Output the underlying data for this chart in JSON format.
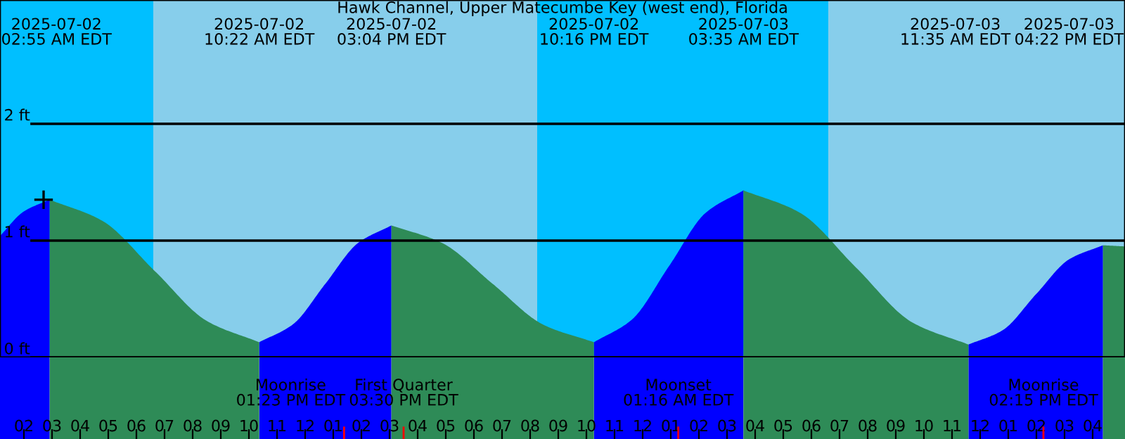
{
  "chart_data": {
    "type": "area",
    "title": "Hawk Channel, Upper Matecumbe Key (west end), Florida",
    "xlim": [
      "2025-07-02T01:09",
      "2025-07-03T17:09"
    ],
    "ylim": [
      0,
      3.06
    ],
    "yticks": [
      {
        "value": 0,
        "label": "0 ft"
      },
      {
        "value": 1,
        "label": "1 ft"
      },
      {
        "value": 2,
        "label": "2 ft"
      }
    ],
    "xticks": [
      {
        "value": "2025-07-02T02:00",
        "label": "02"
      },
      {
        "value": "2025-07-02T03:00",
        "label": "03"
      },
      {
        "value": "2025-07-02T04:00",
        "label": "04"
      },
      {
        "value": "2025-07-02T05:00",
        "label": "05"
      },
      {
        "value": "2025-07-02T06:00",
        "label": "06"
      },
      {
        "value": "2025-07-02T07:00",
        "label": "07"
      },
      {
        "value": "2025-07-02T08:00",
        "label": "08"
      },
      {
        "value": "2025-07-02T09:00",
        "label": "09"
      },
      {
        "value": "2025-07-02T10:00",
        "label": "10"
      },
      {
        "value": "2025-07-02T11:00",
        "label": "11"
      },
      {
        "value": "2025-07-02T12:00",
        "label": "12"
      },
      {
        "value": "2025-07-02T13:00",
        "label": "01"
      },
      {
        "value": "2025-07-02T14:00",
        "label": "02"
      },
      {
        "value": "2025-07-02T15:00",
        "label": "03"
      },
      {
        "value": "2025-07-02T16:00",
        "label": "04"
      },
      {
        "value": "2025-07-02T17:00",
        "label": "05"
      },
      {
        "value": "2025-07-02T18:00",
        "label": "06"
      },
      {
        "value": "2025-07-02T19:00",
        "label": "07"
      },
      {
        "value": "2025-07-02T20:00",
        "label": "08"
      },
      {
        "value": "2025-07-02T21:00",
        "label": "09"
      },
      {
        "value": "2025-07-02T22:00",
        "label": "10"
      },
      {
        "value": "2025-07-02T23:00",
        "label": "11"
      },
      {
        "value": "2025-07-03T00:00",
        "label": "12"
      },
      {
        "value": "2025-07-03T01:00",
        "label": "01"
      },
      {
        "value": "2025-07-03T02:00",
        "label": "02"
      },
      {
        "value": "2025-07-03T03:00",
        "label": "03"
      },
      {
        "value": "2025-07-03T04:00",
        "label": "04"
      },
      {
        "value": "2025-07-03T05:00",
        "label": "05"
      },
      {
        "value": "2025-07-03T06:00",
        "label": "06"
      },
      {
        "value": "2025-07-03T07:00",
        "label": "07"
      },
      {
        "value": "2025-07-03T08:00",
        "label": "08"
      },
      {
        "value": "2025-07-03T09:00",
        "label": "09"
      },
      {
        "value": "2025-07-03T10:00",
        "label": "10"
      },
      {
        "value": "2025-07-03T11:00",
        "label": "11"
      },
      {
        "value": "2025-07-03T12:00",
        "label": "12"
      },
      {
        "value": "2025-07-03T13:00",
        "label": "01"
      },
      {
        "value": "2025-07-03T14:00",
        "label": "02"
      },
      {
        "value": "2025-07-03T15:00",
        "label": "03"
      },
      {
        "value": "2025-07-03T16:00",
        "label": "04"
      }
    ],
    "grid": "y",
    "bands": [
      {
        "axis": "x",
        "from": "2025-07-02T01:09",
        "to": "2025-07-02T06:36",
        "color": "#00bfff"
      },
      {
        "axis": "x",
        "from": "2025-07-02T06:36",
        "to": "2025-07-02T20:15",
        "color": "#87ceeb"
      },
      {
        "axis": "x",
        "from": "2025-07-02T20:15",
        "to": "2025-07-03T06:36",
        "color": "#00bfff"
      },
      {
        "axis": "x",
        "from": "2025-07-03T06:36",
        "to": "2025-07-03T17:09",
        "color": "#87ceeb"
      }
    ],
    "ref_lines": [
      {
        "axis": "x",
        "value": "2025-07-02T13:23",
        "label": "Moonrise\n01:23 PM EDT",
        "color": "#ff0000"
      },
      {
        "axis": "x",
        "value": "2025-07-02T15:30",
        "label": "First Quarter\n03:30 PM EDT",
        "color": "#ff0000"
      },
      {
        "axis": "x",
        "value": "2025-07-03T01:16",
        "label": "Moonset\n01:16 AM EDT",
        "color": "#ff0000"
      },
      {
        "axis": "x",
        "value": "2025-07-03T14:15",
        "label": "Moonrise\n02:15 PM EDT",
        "color": "#ff0000"
      }
    ],
    "series": [
      {
        "color": "#0000ff",
        "x": [
          "2025-07-02T01:09",
          "2025-07-02T02:00",
          "2025-07-02T02:55",
          "2025-07-02T06:00",
          "2025-07-02T10:22",
          "2025-07-02T11:33",
          "2025-07-02T12:43",
          "2025-07-02T13:53",
          "2025-07-02T15:04",
          "2025-07-02T18:00",
          "2025-07-02T22:16",
          "2025-07-02T23:36",
          "2025-07-03T00:56",
          "2025-07-03T02:15",
          "2025-07-03T03:35",
          "2025-07-03T07:00",
          "2025-07-03T11:35",
          "2025-07-03T12:47",
          "2025-07-03T13:59",
          "2025-07-03T15:10",
          "2025-07-03T16:22"
        ],
        "values": [
          1.04,
          1.25,
          1.35,
          null,
          0.13,
          0.28,
          0.63,
          0.98,
          1.13,
          null,
          0.13,
          0.32,
          0.78,
          1.24,
          1.43,
          null,
          0.11,
          0.23,
          0.54,
          0.84,
          0.96
        ]
      },
      {
        "color": "#2e8b57",
        "x": [
          "2025-07-02T02:55",
          "2025-07-02T04:47",
          "2025-07-02T06:39",
          "2025-07-02T08:31",
          "2025-07-02T10:22",
          "2025-07-02T12:00",
          "2025-07-02T15:04",
          "2025-07-02T16:52",
          "2025-07-02T18:40",
          "2025-07-02T20:28",
          "2025-07-02T22:16",
          "2025-07-03T01:00",
          "2025-07-03T03:35",
          "2025-07-03T05:35",
          "2025-07-03T07:35",
          "2025-07-03T09:35",
          "2025-07-03T11:35",
          "2025-07-03T14:00",
          "2025-07-03T16:22",
          "2025-07-03T17:09"
        ],
        "values": [
          1.35,
          1.17,
          0.74,
          0.31,
          0.13,
          null,
          1.13,
          0.98,
          0.63,
          0.28,
          0.13,
          null,
          1.43,
          1.24,
          0.77,
          0.3,
          0.11,
          null,
          0.96,
          0.95
        ]
      },
      {
        "type": "scatter",
        "color": "#000000",
        "marker": "cross",
        "x": [
          "2025-07-02T02:42"
        ],
        "values": [
          1.35
        ]
      }
    ],
    "annotations": [
      "2025-07-02\n02:55 AM EDT",
      "2025-07-02\n10:22 AM EDT",
      "2025-07-02\n03:04 PM EDT",
      "2025-07-02\n10:16 PM EDT",
      "2025-07-03\n03:35 AM EDT",
      "2025-07-03\n11:35 AM EDT",
      "2025-07-03\n04:22 PM EDT"
    ]
  }
}
